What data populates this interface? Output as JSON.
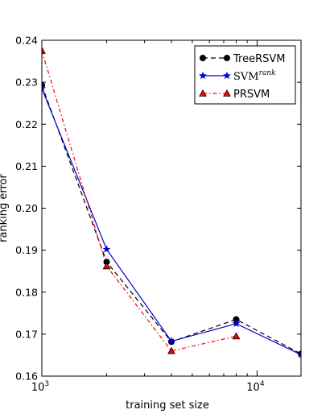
{
  "chart_data": {
    "type": "line",
    "title": "",
    "xlabel": "training set size",
    "ylabel": "ranking error",
    "xscale": "log",
    "xlim": [
      1000,
      16000
    ],
    "ylim": [
      0.16,
      0.24
    ],
    "yticks": [
      0.16,
      0.17,
      0.18,
      0.19,
      0.2,
      0.21,
      0.22,
      0.23,
      0.24
    ],
    "ytick_labels": [
      "0.16",
      "0.17",
      "0.18",
      "0.19",
      "0.20",
      "0.21",
      "0.22",
      "0.23",
      "0.24"
    ],
    "xticks": [
      {
        "value": 1000,
        "base": "10",
        "exp": "3"
      },
      {
        "value": 10000,
        "base": "10",
        "exp": "4"
      }
    ],
    "grid": false,
    "legend_position": "top-right",
    "series": [
      {
        "name": "TreeRSVM",
        "color": "#000000",
        "marker": "circle",
        "line_style": "dashed",
        "x": [
          1000,
          2000,
          4000,
          8000,
          16000
        ],
        "y": [
          0.2293,
          0.1872,
          0.1682,
          0.1735,
          0.1653
        ]
      },
      {
        "name": "SVM",
        "name_sup": "rank",
        "color": "#0000cc",
        "marker": "star",
        "line_style": "solid",
        "x": [
          1000,
          2000,
          4000,
          8000,
          16000
        ],
        "y": [
          0.2285,
          0.1902,
          0.1683,
          0.1725,
          0.1651
        ]
      },
      {
        "name": "PRSVM",
        "color": "#ff0000",
        "marker": "triangle",
        "line_style": "dashdot",
        "x": [
          1000,
          2000,
          4000,
          8000
        ],
        "y": [
          0.2375,
          0.1862,
          0.166,
          0.1695
        ]
      }
    ]
  }
}
